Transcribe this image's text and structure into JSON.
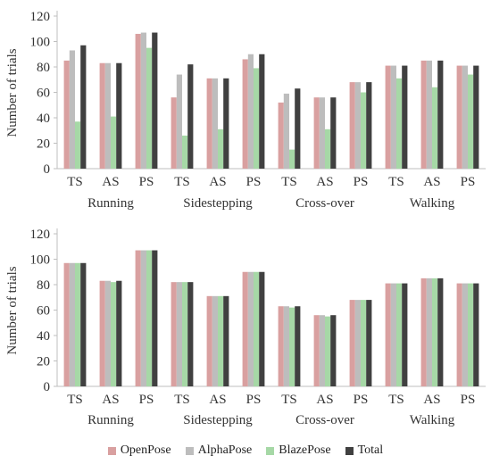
{
  "chart_data": [
    {
      "type": "bar",
      "ylabel": "Number of trials",
      "ylim": [
        0,
        120
      ],
      "yticks": [
        0,
        20,
        40,
        60,
        80,
        100,
        120
      ],
      "grid": false,
      "groups": [
        "Running",
        "Sidestepping",
        "Cross-over",
        "Walking"
      ],
      "categories": [
        "TS",
        "AS",
        "PS",
        "TS",
        "AS",
        "PS",
        "TS",
        "AS",
        "PS",
        "TS",
        "AS",
        "PS"
      ],
      "series": [
        {
          "name": "OpenPose",
          "values": [
            85,
            83,
            106,
            56,
            71,
            86,
            52,
            56,
            68,
            81,
            85,
            81
          ]
        },
        {
          "name": "AlphaPose",
          "values": [
            93,
            83,
            107,
            74,
            71,
            90,
            59,
            56,
            68,
            81,
            85,
            81
          ]
        },
        {
          "name": "BlazePose",
          "values": [
            37,
            41,
            95,
            26,
            31,
            79,
            15,
            31,
            60,
            71,
            64,
            74
          ]
        },
        {
          "name": "Total",
          "values": [
            97,
            83,
            107,
            82,
            71,
            90,
            63,
            56,
            68,
            81,
            85,
            81
          ]
        }
      ]
    },
    {
      "type": "bar",
      "ylabel": "Number of trials",
      "ylim": [
        0,
        120
      ],
      "yticks": [
        0,
        20,
        40,
        60,
        80,
        100,
        120
      ],
      "grid": false,
      "groups": [
        "Running",
        "Sidestepping",
        "Cross-over",
        "Walking"
      ],
      "categories": [
        "TS",
        "AS",
        "PS",
        "TS",
        "AS",
        "PS",
        "TS",
        "AS",
        "PS",
        "TS",
        "AS",
        "PS"
      ],
      "series": [
        {
          "name": "OpenPose",
          "values": [
            97,
            83,
            107,
            82,
            71,
            90,
            63,
            56,
            68,
            81,
            85,
            81
          ]
        },
        {
          "name": "AlphaPose",
          "values": [
            97,
            83,
            107,
            82,
            71,
            90,
            63,
            56,
            68,
            81,
            85,
            81
          ]
        },
        {
          "name": "BlazePose",
          "values": [
            97,
            82,
            107,
            82,
            71,
            90,
            62,
            55,
            68,
            81,
            85,
            81
          ]
        },
        {
          "name": "Total",
          "values": [
            97,
            83,
            107,
            82,
            71,
            90,
            63,
            56,
            68,
            81,
            85,
            81
          ]
        }
      ]
    }
  ],
  "legend": {
    "placement": "bottom",
    "items": [
      {
        "label": "OpenPose",
        "color": "#d9a0a0"
      },
      {
        "label": "AlphaPose",
        "color": "#bdbdbd"
      },
      {
        "label": "BlazePose",
        "color": "#a6d8a6"
      },
      {
        "label": "Total",
        "color": "#404040"
      }
    ]
  }
}
